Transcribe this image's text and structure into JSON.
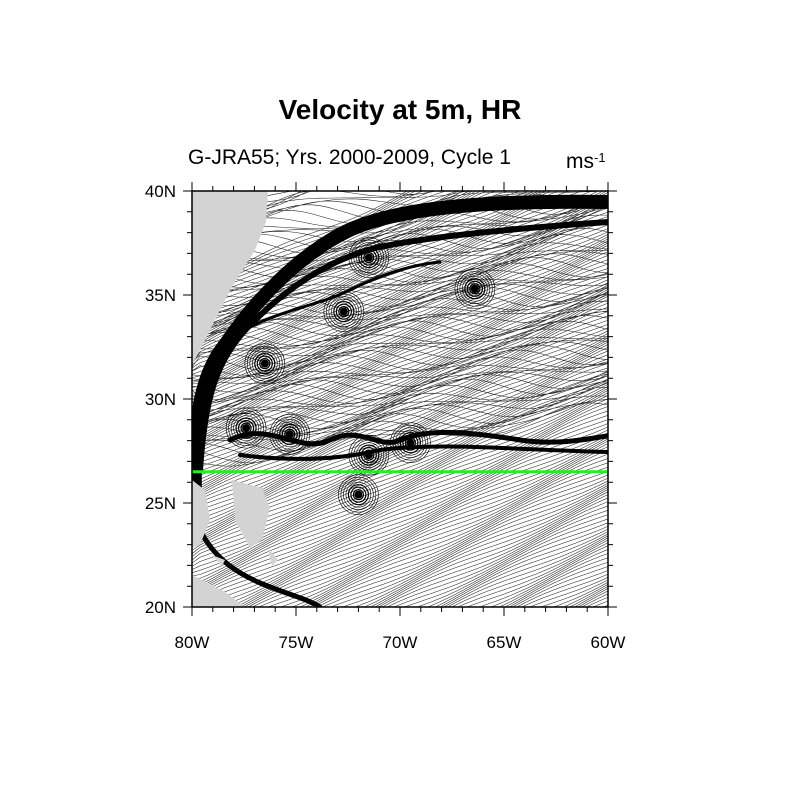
{
  "title": "Velocity at 5m, HR",
  "subtitle": "G-JRA55; Yrs. 2000-2009, Cycle 1",
  "units": {
    "base": "ms",
    "exponent": "-1"
  },
  "map": {
    "lon_range": [
      -80,
      -60
    ],
    "lat_range": [
      20,
      40
    ],
    "x_ticks": [
      {
        "value": -80,
        "label": "80W"
      },
      {
        "value": -75,
        "label": "75W"
      },
      {
        "value": -70,
        "label": "70W"
      },
      {
        "value": -65,
        "label": "65W"
      },
      {
        "value": -60,
        "label": "60W"
      }
    ],
    "y_ticks": [
      {
        "value": 20,
        "label": "20N"
      },
      {
        "value": 25,
        "label": "25N"
      },
      {
        "value": 30,
        "label": "30N"
      },
      {
        "value": 35,
        "label": "35N"
      },
      {
        "value": 40,
        "label": "40N"
      }
    ],
    "section_line": {
      "lat": 26.5,
      "color": "#22ee22"
    },
    "land_color": "#d3d3d3",
    "streamline_color": "#000000",
    "eddies": [
      {
        "lon": -77.4,
        "lat": 28.6
      },
      {
        "lon": -75.3,
        "lat": 28.3
      },
      {
        "lon": -72.7,
        "lat": 34.2
      },
      {
        "lon": -71.5,
        "lat": 36.8
      },
      {
        "lon": -76.5,
        "lat": 31.7
      },
      {
        "lon": -66.4,
        "lat": 35.3
      },
      {
        "lon": -69.5,
        "lat": 27.9
      },
      {
        "lon": -71.5,
        "lat": 27.3
      },
      {
        "lon": -72.0,
        "lat": 25.4
      }
    ]
  }
}
